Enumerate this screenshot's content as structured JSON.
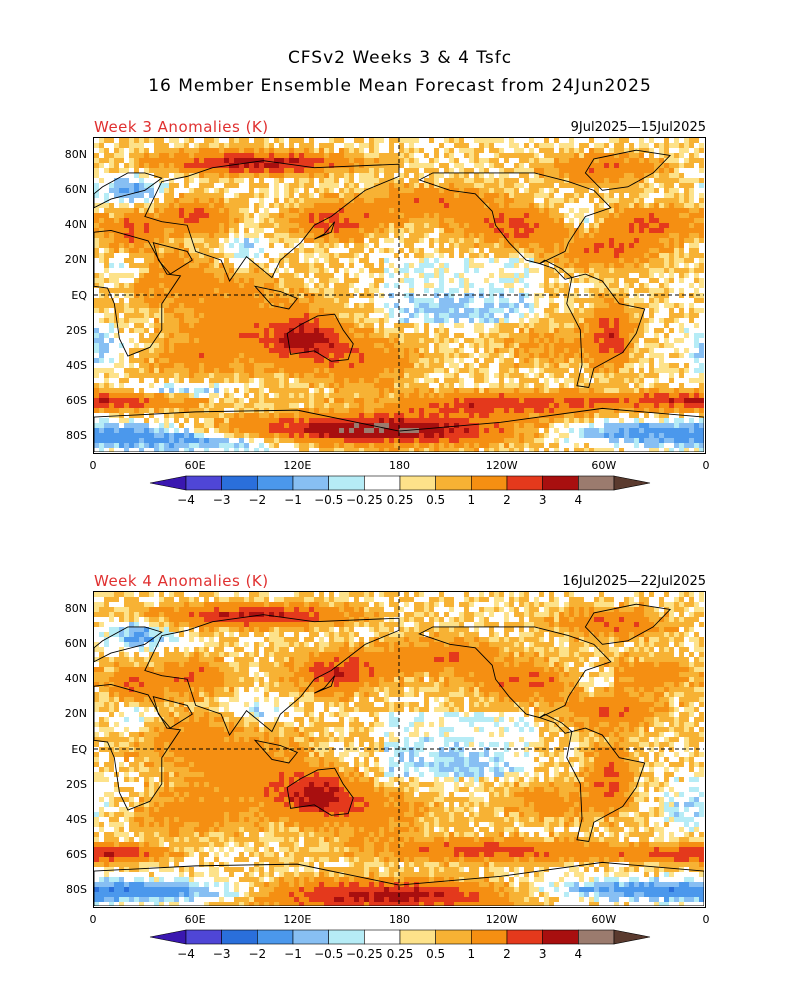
{
  "title": {
    "line1": "CFSv2 Weeks 3 & 4 Tsfc",
    "line2": "16 Member Ensemble Mean Forecast from 24Jun2025"
  },
  "panels": [
    {
      "title": "Week 3 Anomalies (K)",
      "date_range": "9Jul2025—15Jul2025"
    },
    {
      "title": "Week 4 Anomalies (K)",
      "date_range": "16Jul2025—22Jul2025"
    }
  ],
  "lat_labels": [
    "80N",
    "60N",
    "40N",
    "20N",
    "EQ",
    "20S",
    "40S",
    "60S",
    "80S"
  ],
  "lon_labels": [
    "0",
    "60E",
    "120E",
    "180",
    "120W",
    "60W",
    "0"
  ],
  "colorbar": {
    "labels": [
      "−4",
      "−3",
      "−2",
      "−1",
      "−0.5",
      "−0.25",
      "0.25",
      "0.5",
      "1",
      "2",
      "3",
      "4"
    ],
    "colors": [
      "#3a17b0",
      "#4f46d6",
      "#2a6fdb",
      "#4b98ec",
      "#87bff3",
      "#b6ecf6",
      "#ffffff",
      "#fde28a",
      "#f7b234",
      "#f58f12",
      "#e4391c",
      "#a80f0f",
      "#9b7b6e",
      "#5a3a2e"
    ]
  }
}
